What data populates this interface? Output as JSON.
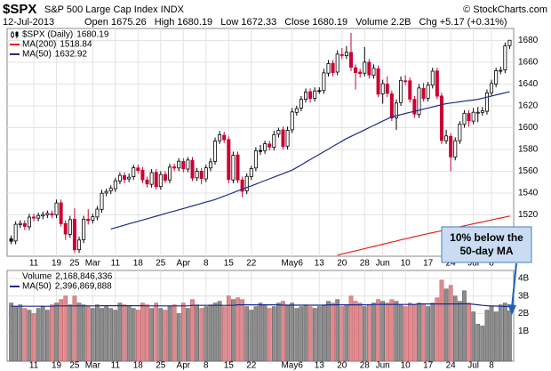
{
  "header": {
    "title": "$SPX",
    "subtitle": "S&P 500 Large Cap Index INDX",
    "copyright": "© StockCharts.com",
    "date": "12-Jul-2013",
    "info": [
      "Open 1675.26",
      "High 1680.19",
      "Low 1672.33",
      "Close 1680.19",
      "Volume 2.2B",
      "Chg +5.17 (+0.31%)"
    ]
  },
  "chart_data": [
    {
      "type": "candlestick",
      "name": "$SPX (Daily)",
      "last_label": "1680.19",
      "up_color": "#000000",
      "down_color": "#cc0033",
      "xlim": [
        -0.5,
        110.5
      ],
      "ylim": [
        1482,
        1691
      ],
      "yticks": [
        1520,
        1540,
        1560,
        1580,
        1600,
        1620,
        1640,
        1660,
        1680
      ],
      "grid": true,
      "xticks": [
        {
          "value": 5,
          "label": "11"
        },
        {
          "value": 10,
          "label": "19"
        },
        {
          "value": 14,
          "label": "25"
        },
        {
          "value": 18,
          "label": "Mar"
        },
        {
          "value": 23,
          "label": "11"
        },
        {
          "value": 28,
          "label": "18"
        },
        {
          "value": 33,
          "label": "25"
        },
        {
          "value": 38,
          "label": "Apr"
        },
        {
          "value": 43,
          "label": "8"
        },
        {
          "value": 48,
          "label": "15"
        },
        {
          "value": 53,
          "label": "22"
        },
        {
          "value": 62,
          "label": "May6"
        },
        {
          "value": 68,
          "label": "13"
        },
        {
          "value": 73,
          "label": "20"
        },
        {
          "value": 78,
          "label": "28"
        },
        {
          "value": 82,
          "label": "Jun"
        },
        {
          "value": 87,
          "label": "10"
        },
        {
          "value": 92,
          "label": "17"
        },
        {
          "value": 97,
          "label": "24"
        },
        {
          "value": 102,
          "label": "Jul"
        },
        {
          "value": 106,
          "label": "8"
        }
      ],
      "open": [
        1498,
        1496,
        1511,
        1512,
        1509,
        1518,
        1517,
        1519,
        1520,
        1521,
        1520,
        1531,
        1512,
        1502,
        1516,
        1488,
        1497,
        1516,
        1515,
        1518,
        1525,
        1540,
        1542,
        1544,
        1551,
        1556,
        1553,
        1555,
        1563,
        1561,
        1552,
        1548,
        1559,
        1546,
        1557,
        1552,
        1564,
        1563,
        1569,
        1562,
        1570,
        1554,
        1560,
        1553,
        1563,
        1569,
        1588,
        1593,
        1589,
        1552,
        1575,
        1552,
        1542,
        1555,
        1563,
        1579,
        1579,
        1585,
        1582,
        1594,
        1598,
        1583,
        1598,
        1614,
        1618,
        1626,
        1633,
        1627,
        1634,
        1634,
        1650,
        1659,
        1651,
        1667,
        1666,
        1669,
        1655,
        1651,
        1650,
        1660,
        1648,
        1654,
        1631,
        1640,
        1631,
        1609,
        1623,
        1643,
        1643,
        1626,
        1612,
        1636,
        1627,
        1639,
        1652,
        1629,
        1588,
        1592,
        1573,
        1588,
        1603,
        1613,
        1606,
        1614,
        1614,
        1615,
        1632,
        1640,
        1652,
        1653,
        1675.26
      ],
      "high": [
        1501,
        1514,
        1515,
        1515,
        1521,
        1521,
        1522,
        1523,
        1524,
        1524,
        1534,
        1534,
        1515,
        1519,
        1526,
        1500,
        1519,
        1525,
        1521,
        1528,
        1543,
        1544,
        1547,
        1554,
        1559,
        1559,
        1558,
        1566,
        1566,
        1564,
        1555,
        1562,
        1562,
        1560,
        1560,
        1567,
        1567,
        1572,
        1572,
        1573,
        1573,
        1563,
        1563,
        1566,
        1572,
        1591,
        1597,
        1596,
        1592,
        1578,
        1578,
        1555,
        1558,
        1565,
        1582,
        1584,
        1588,
        1588,
        1597,
        1600,
        1601,
        1601,
        1618,
        1620,
        1629,
        1636,
        1636,
        1637,
        1637,
        1654,
        1662,
        1662,
        1671,
        1673,
        1675,
        1687,
        1658,
        1654,
        1674,
        1663,
        1658,
        1657,
        1644,
        1647,
        1634,
        1626,
        1647,
        1648,
        1646,
        1629,
        1640,
        1641,
        1642,
        1655,
        1655,
        1632,
        1598,
        1595,
        1591,
        1606,
        1616,
        1616,
        1618,
        1619,
        1619,
        1635,
        1644,
        1655,
        1656,
        1678,
        1680.19
      ],
      "low": [
        1493,
        1493,
        1508,
        1506,
        1506,
        1514,
        1514,
        1516,
        1517,
        1517,
        1517,
        1509,
        1497,
        1499,
        1485,
        1485,
        1494,
        1511,
        1512,
        1515,
        1522,
        1537,
        1539,
        1541,
        1548,
        1549,
        1550,
        1552,
        1558,
        1549,
        1545,
        1545,
        1543,
        1543,
        1549,
        1549,
        1560,
        1560,
        1559,
        1559,
        1551,
        1551,
        1548,
        1550,
        1560,
        1566,
        1585,
        1586,
        1549,
        1549,
        1549,
        1536,
        1539,
        1552,
        1560,
        1575,
        1576,
        1579,
        1579,
        1591,
        1580,
        1580,
        1595,
        1611,
        1615,
        1623,
        1623,
        1624,
        1631,
        1631,
        1647,
        1647,
        1648,
        1663,
        1663,
        1652,
        1635,
        1646,
        1647,
        1645,
        1645,
        1628,
        1622,
        1628,
        1606,
        1598,
        1620,
        1639,
        1623,
        1609,
        1609,
        1624,
        1624,
        1636,
        1626,
        1585,
        1585,
        1560,
        1570,
        1585,
        1600,
        1601,
        1603,
        1605,
        1611,
        1612,
        1629,
        1637,
        1649,
        1650,
        1672.33
      ],
      "close": [
        1495.7,
        1511.3,
        1512.1,
        1509.4,
        1517.9,
        1517.0,
        1519.4,
        1520.3,
        1521.4,
        1519.8,
        1530.9,
        1511.9,
        1502.4,
        1515.6,
        1487.9,
        1496.9,
        1516.0,
        1514.7,
        1518.2,
        1525.2,
        1539.8,
        1541.5,
        1544.3,
        1551.2,
        1556.2,
        1552.5,
        1554.5,
        1563.2,
        1560.7,
        1552.1,
        1548.3,
        1558.7,
        1545.8,
        1556.9,
        1551.7,
        1563.8,
        1562.9,
        1569.2,
        1562.2,
        1570.3,
        1553.7,
        1560.0,
        1553.3,
        1563.1,
        1568.6,
        1587.7,
        1593.4,
        1588.9,
        1552.4,
        1574.6,
        1552.0,
        1541.6,
        1555.3,
        1562.5,
        1578.8,
        1578.8,
        1585.2,
        1582.2,
        1593.6,
        1597.6,
        1582.7,
        1597.6,
        1614.4,
        1617.5,
        1626.0,
        1632.7,
        1626.7,
        1633.7,
        1633.8,
        1650.3,
        1658.8,
        1650.5,
        1667.5,
        1666.3,
        1669.2,
        1655.4,
        1650.5,
        1649.6,
        1660.1,
        1648.4,
        1654.4,
        1630.7,
        1640.4,
        1631.4,
        1608.9,
        1622.6,
        1643.4,
        1642.8,
        1626.1,
        1612.5,
        1636.4,
        1626.7,
        1639.0,
        1651.8,
        1628.9,
        1588.2,
        1592.4,
        1573.1,
        1588.0,
        1603.3,
        1613.2,
        1606.3,
        1614.1,
        1614.1,
        1615.4,
        1631.9,
        1640.5,
        1652.3,
        1652.6,
        1675.0,
        1680.19
      ],
      "series": [
        {
          "name": "MA(200)",
          "last_label": "1518.84",
          "color": "#e8201c",
          "values": [
            null,
            null,
            null,
            null,
            null,
            null,
            null,
            null,
            null,
            null,
            null,
            null,
            null,
            null,
            null,
            null,
            null,
            null,
            null,
            null,
            null,
            null,
            null,
            null,
            null,
            null,
            null,
            null,
            null,
            null,
            null,
            null,
            null,
            null,
            null,
            null,
            null,
            null,
            null,
            null,
            null,
            null,
            null,
            null,
            null,
            null,
            null,
            null,
            null,
            null,
            null,
            null,
            null,
            null,
            null,
            null,
            null,
            null,
            null,
            null,
            null,
            null,
            null,
            null,
            null,
            null,
            null,
            null,
            null,
            null,
            null,
            null,
            1483,
            1484,
            1485,
            1486,
            1487,
            1488,
            1489,
            1490,
            1491,
            1492,
            1493,
            1494,
            1495,
            1496,
            1497,
            1498,
            1499,
            1500,
            1500.9,
            1501.8,
            1502.7,
            1503.6,
            1504.5,
            1505.4,
            1506.3,
            1507.2,
            1508.1,
            1509,
            1509.9,
            1510.8,
            1511.7,
            1512.6,
            1513.5,
            1514.4,
            1515.3,
            1516.2,
            1517.1,
            1518,
            1518.84
          ]
        },
        {
          "name": "MA(50)",
          "last_label": "1632.92",
          "color": "#1f2a8c",
          "values": [
            null,
            null,
            null,
            null,
            null,
            null,
            null,
            null,
            null,
            null,
            null,
            null,
            null,
            null,
            null,
            null,
            null,
            null,
            null,
            null,
            null,
            null,
            1507,
            1508.2,
            1509.3,
            1510.5,
            1511.7,
            1512.9,
            1514,
            1515.2,
            1516.4,
            1517.6,
            1518.7,
            1519.9,
            1521.1,
            1522.3,
            1523.4,
            1524.6,
            1525.8,
            1527,
            1528.1,
            1529.3,
            1530.5,
            1531.7,
            1532.8,
            1534,
            1535.6,
            1537.1,
            1538.7,
            1540.3,
            1541.9,
            1543.4,
            1545,
            1546.6,
            1548.2,
            1549.8,
            1551.4,
            1553,
            1554.6,
            1556.2,
            1557.8,
            1559.4,
            1561,
            1563.4,
            1565.8,
            1568.3,
            1570.7,
            1573.1,
            1575.5,
            1577.9,
            1580.3,
            1582.8,
            1585.2,
            1587.6,
            1590,
            1592,
            1594,
            1596,
            1598,
            1600,
            1602,
            1604,
            1606,
            1608,
            1610,
            1611,
            1612,
            1613,
            1614,
            1615,
            1616,
            1617,
            1618,
            1619,
            1620,
            1621,
            1622,
            1622.6,
            1623.1,
            1623.7,
            1624.3,
            1624.9,
            1625.4,
            1626,
            1627,
            1628,
            1629,
            1630,
            1631,
            1632,
            1632.92
          ]
        }
      ],
      "annotation": {
        "lines": [
          "10% below the",
          "50-day MA"
        ]
      }
    },
    {
      "type": "bar",
      "name": "Volume",
      "last_label": "2,168,846,336",
      "up_color": "#8c8c8c",
      "down_color": "#e08a8f",
      "xlim": [
        -0.5,
        110.5
      ],
      "ylim": [
        -0.7,
        4.45
      ],
      "yticks": [
        {
          "value": 1,
          "label": "1B"
        },
        {
          "value": 2,
          "label": "2B"
        },
        {
          "value": 3,
          "label": "3B"
        },
        {
          "value": 4,
          "label": "4B"
        }
      ],
      "values": [
        2.6,
        2.4,
        2.5,
        2.3,
        2.2,
        2.0,
        2.3,
        2.4,
        2.2,
        2.5,
        2.6,
        2.8,
        3.0,
        2.5,
        3.0,
        2.6,
        2.5,
        2.4,
        2.3,
        2.5,
        2.3,
        2.4,
        2.3,
        2.2,
        2.6,
        2.5,
        2.4,
        2.3,
        2.2,
        2.6,
        2.5,
        2.3,
        2.6,
        2.3,
        2.2,
        2.4,
        2.5,
        2.0,
        2.6,
        2.3,
        2.8,
        2.5,
        2.3,
        2.4,
        2.5,
        2.6,
        2.7,
        2.4,
        3.0,
        2.8,
        2.9,
        2.8,
        2.4,
        2.2,
        2.4,
        2.6,
        2.5,
        2.3,
        2.4,
        2.6,
        2.7,
        2.5,
        2.6,
        2.3,
        2.4,
        2.5,
        2.4,
        2.3,
        2.4,
        2.5,
        2.7,
        2.6,
        2.8,
        2.4,
        2.5,
        3.0,
        2.7,
        2.6,
        2.4,
        2.5,
        2.6,
        2.8,
        2.7,
        2.6,
        2.8,
        2.7,
        2.5,
        2.4,
        2.6,
        2.5,
        2.6,
        2.5,
        2.4,
        2.6,
        2.9,
        3.9,
        3.4,
        3.6,
        3.0,
        2.7,
        3.3,
        2.6,
        2.1,
        1.4,
        1.3,
        2.2,
        2.4,
        2.1,
        2.5,
        2.6,
        2.169
      ],
      "series": [
        {
          "name": "MA(50)",
          "last_label": "2,396,869,888",
          "color": "#1f2a8c",
          "values": [
            2.42,
            2.42,
            2.42,
            2.42,
            2.42,
            2.42,
            2.42,
            2.42,
            2.42,
            2.42,
            2.44,
            2.44,
            2.44,
            2.44,
            2.44,
            2.44,
            2.44,
            2.44,
            2.44,
            2.44,
            2.45,
            2.45,
            2.45,
            2.45,
            2.45,
            2.45,
            2.45,
            2.45,
            2.45,
            2.45,
            2.44,
            2.44,
            2.44,
            2.44,
            2.44,
            2.44,
            2.44,
            2.44,
            2.44,
            2.44,
            2.47,
            2.47,
            2.47,
            2.47,
            2.47,
            2.47,
            2.47,
            2.47,
            2.47,
            2.47,
            2.5,
            2.5,
            2.5,
            2.5,
            2.5,
            2.5,
            2.5,
            2.5,
            2.5,
            2.5,
            2.48,
            2.48,
            2.48,
            2.48,
            2.48,
            2.48,
            2.48,
            2.48,
            2.48,
            2.48,
            2.5,
            2.5,
            2.5,
            2.5,
            2.5,
            2.5,
            2.5,
            2.5,
            2.5,
            2.5,
            2.52,
            2.52,
            2.52,
            2.52,
            2.52,
            2.52,
            2.52,
            2.52,
            2.52,
            2.52,
            2.55,
            2.55,
            2.55,
            2.55,
            2.55,
            2.55,
            2.55,
            2.55,
            2.55,
            2.55,
            2.56,
            2.55,
            2.53,
            2.5,
            2.47,
            2.45,
            2.44,
            2.43,
            2.42,
            2.41,
            2.397
          ]
        }
      ]
    }
  ]
}
